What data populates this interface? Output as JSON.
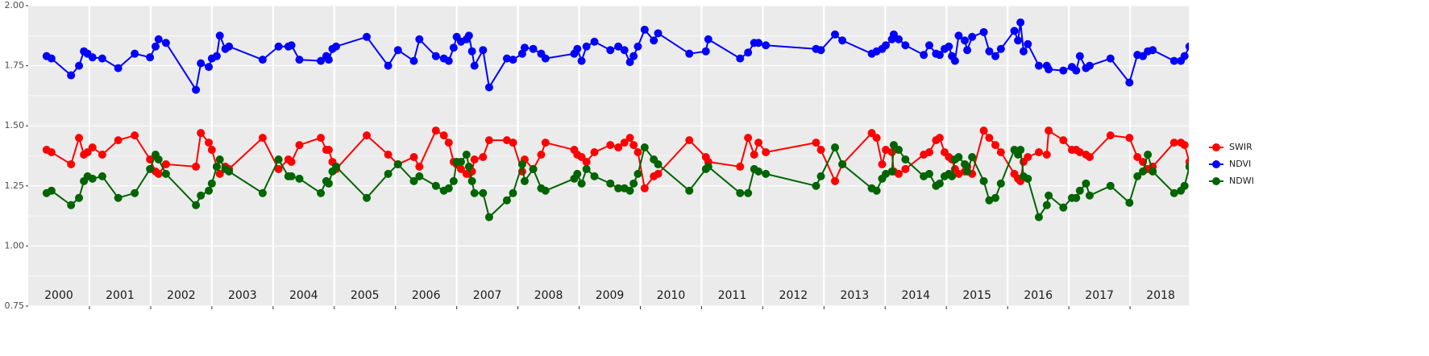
{
  "chart_data": {
    "type": "line",
    "x": [
      2000.3,
      2000.38,
      2000.7,
      2000.83,
      2000.91,
      2000.97,
      2001.05,
      2001.21,
      2001.47,
      2001.74,
      2001.99,
      2002.08,
      2002.13,
      2002.25,
      2002.74,
      2002.82,
      2002.95,
      2003.0,
      2003.08,
      2003.13,
      2003.22,
      2003.28,
      2003.83,
      2004.09,
      2004.25,
      2004.3,
      2004.43,
      2004.78,
      2004.87,
      2004.91,
      2004.97,
      2005.03,
      2005.53,
      2005.88,
      2006.04,
      2006.3,
      2006.39,
      2006.66,
      2006.79,
      2006.87,
      2006.95,
      2007.0,
      2007.07,
      2007.16,
      2007.2,
      2007.25,
      2007.29,
      2007.43,
      2007.53,
      2007.82,
      2007.92,
      2008.07,
      2008.11,
      2008.25,
      2008.38,
      2008.45,
      2008.92,
      2008.97,
      2009.04,
      2009.12,
      2009.25,
      2009.51,
      2009.64,
      2009.74,
      2009.83,
      2009.89,
      2009.96,
      2010.07,
      2010.22,
      2010.29,
      2010.8,
      2011.07,
      2011.11,
      2011.63,
      2011.76,
      2011.86,
      2011.93,
      2012.05,
      2012.87,
      2012.95,
      2013.18,
      2013.3,
      2013.78,
      2013.86,
      2013.95,
      2014.01,
      2014.11,
      2014.14,
      2014.22,
      2014.33,
      2014.63,
      2014.72,
      2014.83,
      2014.89,
      2014.97,
      2015.04,
      2015.09,
      2015.14,
      2015.2,
      2015.3,
      2015.34,
      2015.42,
      2015.61,
      2015.7,
      2015.8,
      2015.89,
      2016.11,
      2016.17,
      2016.21,
      2016.26,
      2016.33,
      2016.51,
      2016.64,
      2016.67,
      2016.91,
      2017.05,
      2017.12,
      2017.18,
      2017.28,
      2017.34,
      2017.68,
      2017.99,
      2018.12,
      2018.21,
      2018.29,
      2018.37,
      2018.72,
      2018.83,
      2018.89,
      2018.97
    ],
    "series": [
      {
        "name": "SWIR",
        "color": "#ff0000",
        "values": [
          1.4,
          1.39,
          1.34,
          1.45,
          1.38,
          1.39,
          1.41,
          1.38,
          1.44,
          1.46,
          1.36,
          1.31,
          1.3,
          1.34,
          1.33,
          1.47,
          1.43,
          1.4,
          1.33,
          1.3,
          1.33,
          1.32,
          1.45,
          1.32,
          1.36,
          1.35,
          1.42,
          1.45,
          1.4,
          1.4,
          1.35,
          1.32,
          1.46,
          1.38,
          1.34,
          1.37,
          1.33,
          1.48,
          1.46,
          1.43,
          1.35,
          1.34,
          1.32,
          1.3,
          1.3,
          1.31,
          1.36,
          1.37,
          1.44,
          1.44,
          1.43,
          1.31,
          1.36,
          1.32,
          1.38,
          1.43,
          1.4,
          1.38,
          1.37,
          1.35,
          1.39,
          1.42,
          1.41,
          1.43,
          1.45,
          1.42,
          1.39,
          1.24,
          1.29,
          1.3,
          1.44,
          1.37,
          1.35,
          1.33,
          1.45,
          1.38,
          1.43,
          1.39,
          1.43,
          1.4,
          1.27,
          1.34,
          1.47,
          1.45,
          1.34,
          1.4,
          1.39,
          1.31,
          1.3,
          1.32,
          1.38,
          1.39,
          1.44,
          1.45,
          1.39,
          1.37,
          1.36,
          1.32,
          1.3,
          1.31,
          1.33,
          1.3,
          1.48,
          1.45,
          1.42,
          1.39,
          1.3,
          1.28,
          1.27,
          1.35,
          1.37,
          1.39,
          1.38,
          1.48,
          1.44,
          1.4,
          1.4,
          1.39,
          1.38,
          1.37,
          1.46,
          1.45,
          1.37,
          1.35,
          1.32,
          1.33,
          1.43,
          1.43,
          1.42,
          1.35
        ]
      },
      {
        "name": "NDVI",
        "color": "#0000ff",
        "values": [
          1.79,
          1.78,
          1.71,
          1.75,
          1.81,
          1.8,
          1.785,
          1.78,
          1.74,
          1.8,
          1.785,
          1.83,
          1.86,
          1.845,
          1.65,
          1.76,
          1.745,
          1.78,
          1.79,
          1.875,
          1.82,
          1.83,
          1.775,
          1.83,
          1.83,
          1.835,
          1.775,
          1.77,
          1.79,
          1.775,
          1.82,
          1.83,
          1.87,
          1.75,
          1.815,
          1.77,
          1.86,
          1.79,
          1.78,
          1.77,
          1.825,
          1.87,
          1.85,
          1.86,
          1.875,
          1.81,
          1.75,
          1.815,
          1.66,
          1.78,
          1.775,
          1.8,
          1.825,
          1.82,
          1.8,
          1.78,
          1.8,
          1.82,
          1.77,
          1.83,
          1.85,
          1.815,
          1.83,
          1.815,
          1.765,
          1.79,
          1.83,
          1.9,
          1.855,
          1.885,
          1.8,
          1.81,
          1.86,
          1.78,
          1.805,
          1.845,
          1.845,
          1.835,
          1.82,
          1.815,
          1.88,
          1.855,
          1.8,
          1.81,
          1.82,
          1.835,
          1.86,
          1.88,
          1.86,
          1.835,
          1.795,
          1.835,
          1.8,
          1.795,
          1.82,
          1.83,
          1.79,
          1.77,
          1.875,
          1.855,
          1.815,
          1.87,
          1.89,
          1.81,
          1.79,
          1.82,
          1.895,
          1.855,
          1.93,
          1.81,
          1.84,
          1.75,
          1.75,
          1.735,
          1.73,
          1.745,
          1.73,
          1.79,
          1.74,
          1.75,
          1.78,
          1.68,
          1.795,
          1.79,
          1.81,
          1.815,
          1.77,
          1.77,
          1.79,
          1.83
        ]
      },
      {
        "name": "NDWI",
        "color": "#006400",
        "values": [
          1.22,
          1.23,
          1.17,
          1.2,
          1.27,
          1.29,
          1.28,
          1.29,
          1.2,
          1.22,
          1.32,
          1.38,
          1.36,
          1.3,
          1.17,
          1.21,
          1.23,
          1.26,
          1.33,
          1.36,
          1.32,
          1.31,
          1.22,
          1.36,
          1.29,
          1.29,
          1.28,
          1.22,
          1.27,
          1.26,
          1.31,
          1.33,
          1.2,
          1.3,
          1.34,
          1.27,
          1.29,
          1.25,
          1.23,
          1.24,
          1.27,
          1.35,
          1.35,
          1.38,
          1.33,
          1.27,
          1.22,
          1.22,
          1.12,
          1.19,
          1.22,
          1.34,
          1.27,
          1.32,
          1.24,
          1.23,
          1.28,
          1.3,
          1.26,
          1.32,
          1.29,
          1.26,
          1.24,
          1.24,
          1.23,
          1.26,
          1.3,
          1.41,
          1.36,
          1.34,
          1.23,
          1.32,
          1.33,
          1.22,
          1.22,
          1.32,
          1.31,
          1.3,
          1.25,
          1.29,
          1.41,
          1.34,
          1.24,
          1.23,
          1.28,
          1.3,
          1.31,
          1.42,
          1.4,
          1.36,
          1.29,
          1.3,
          1.25,
          1.26,
          1.29,
          1.3,
          1.29,
          1.36,
          1.37,
          1.34,
          1.31,
          1.37,
          1.27,
          1.19,
          1.2,
          1.26,
          1.4,
          1.38,
          1.4,
          1.29,
          1.28,
          1.12,
          1.17,
          1.21,
          1.16,
          1.2,
          1.2,
          1.23,
          1.26,
          1.21,
          1.25,
          1.18,
          1.29,
          1.31,
          1.38,
          1.31,
          1.22,
          1.23,
          1.25,
          1.33
        ]
      }
    ],
    "xlim": [
      2000,
      2018.96
    ],
    "xticks": [
      2001,
      2002,
      2003,
      2004,
      2005,
      2006,
      2007,
      2008,
      2009,
      2010,
      2011,
      2012,
      2013,
      2014,
      2015,
      2016,
      2017,
      2018
    ],
    "year_labels": [
      {
        "value": 2000.5,
        "label": "2000"
      },
      {
        "value": 2001.5,
        "label": "2001"
      },
      {
        "value": 2002.5,
        "label": "2002"
      },
      {
        "value": 2003.5,
        "label": "2003"
      },
      {
        "value": 2004.5,
        "label": "2004"
      },
      {
        "value": 2005.5,
        "label": "2005"
      },
      {
        "value": 2006.5,
        "label": "2006"
      },
      {
        "value": 2007.5,
        "label": "2007"
      },
      {
        "value": 2008.5,
        "label": "2008"
      },
      {
        "value": 2009.5,
        "label": "2009"
      },
      {
        "value": 2010.5,
        "label": "2010"
      },
      {
        "value": 2011.5,
        "label": "2011"
      },
      {
        "value": 2012.5,
        "label": "2012"
      },
      {
        "value": 2013.5,
        "label": "2013"
      },
      {
        "value": 2014.5,
        "label": "2014"
      },
      {
        "value": 2015.5,
        "label": "2015"
      },
      {
        "value": 2016.5,
        "label": "2016"
      },
      {
        "value": 2017.5,
        "label": "2017"
      },
      {
        "value": 2018.5,
        "label": "2018"
      }
    ],
    "ylim": [
      0.75,
      2.0
    ],
    "yticks": [
      0.75,
      {
        "value": 1.0,
        "label": "1.00"
      },
      1.25,
      {
        "value": 1.5,
        "label": "1.50"
      },
      1.75,
      {
        "value": 2.0,
        "label": "2.00"
      }
    ],
    "y_minor_ticks": [
      0.875,
      1.125,
      1.375,
      1.625,
      1.875
    ],
    "grid": true,
    "legend": "right"
  }
}
